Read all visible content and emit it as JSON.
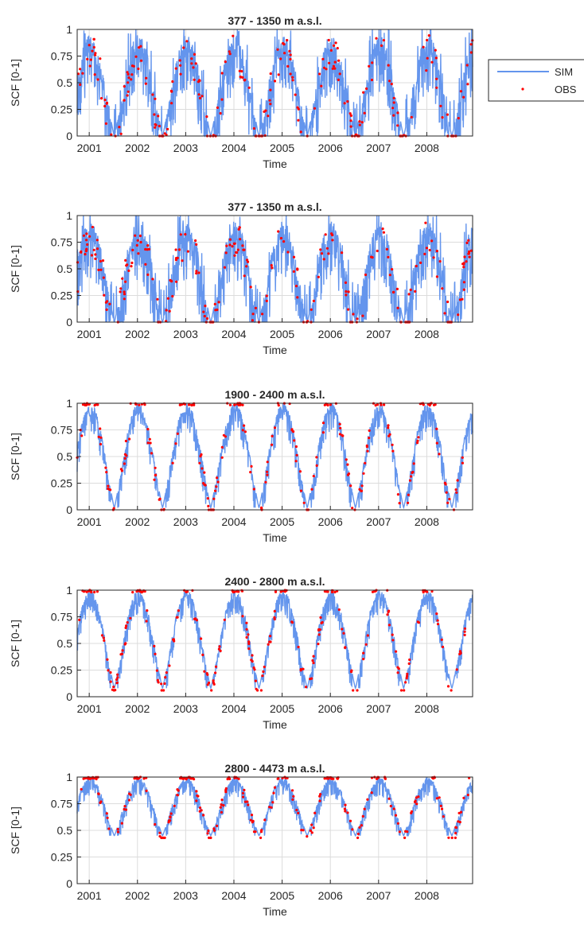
{
  "legend": {
    "sim_label": "SIM",
    "obs_label": "OBS",
    "sim_color": "#6495ED",
    "obs_color": "#FF0000"
  },
  "chart_data": [
    {
      "type": "line",
      "title": "377 - 1350 m a.s.l.",
      "xlabel": "Time",
      "ylabel": "SCF [0-1]",
      "xlim": [
        2000.75,
        2008.95
      ],
      "ylim": [
        0,
        1
      ],
      "x_tick_labels": [
        "2001",
        "2002",
        "2003",
        "2004",
        "2005",
        "2006",
        "2007",
        "2008"
      ],
      "y_tick_labels": [
        "0",
        "0.25",
        "0.5",
        "0.75",
        "1"
      ],
      "grid": true,
      "seasonal_profile": {
        "summer_min": 0.0,
        "winter_max": 0.95,
        "noise_amplitude": 0.55
      },
      "series": [
        {
          "name": "SIM",
          "style": "line",
          "color": "#6495ED"
        },
        {
          "name": "OBS",
          "style": "points",
          "color": "#FF0000"
        }
      ]
    },
    {
      "type": "line",
      "title": "377 - 1350 m a.s.l.",
      "xlabel": "Time",
      "ylabel": "SCF [0-1]",
      "xlim": [
        2000.75,
        2008.95
      ],
      "ylim": [
        0,
        1
      ],
      "x_tick_labels": [
        "2001",
        "2002",
        "2003",
        "2004",
        "2005",
        "2006",
        "2007",
        "2008"
      ],
      "y_tick_labels": [
        "0",
        "0.25",
        "0.5",
        "0.75",
        "1"
      ],
      "grid": true,
      "seasonal_profile": {
        "summer_min": 0.0,
        "winter_max": 0.95,
        "noise_amplitude": 0.55
      },
      "series": [
        {
          "name": "SIM",
          "style": "line",
          "color": "#6495ED"
        },
        {
          "name": "OBS",
          "style": "points",
          "color": "#FF0000"
        }
      ]
    },
    {
      "type": "line",
      "title": "1900 - 2400 m a.s.l.",
      "xlabel": "Time",
      "ylabel": "SCF [0-1]",
      "xlim": [
        2000.75,
        2008.95
      ],
      "ylim": [
        0,
        1
      ],
      "x_tick_labels": [
        "2001",
        "2002",
        "2003",
        "2004",
        "2005",
        "2006",
        "2007",
        "2008"
      ],
      "y_tick_labels": [
        "0",
        "0.25",
        "0.5",
        "0.75",
        "1"
      ],
      "grid": true,
      "seasonal_profile": {
        "summer_min": 0.02,
        "winter_max": 1.0,
        "noise_amplitude": 0.3
      },
      "series": [
        {
          "name": "SIM",
          "style": "line",
          "color": "#6495ED"
        },
        {
          "name": "OBS",
          "style": "points",
          "color": "#FF0000"
        }
      ]
    },
    {
      "type": "line",
      "title": "2400 - 2800 m a.s.l.",
      "xlabel": "Time",
      "ylabel": "SCF [0-1]",
      "xlim": [
        2000.75,
        2008.95
      ],
      "ylim": [
        0,
        1
      ],
      "x_tick_labels": [
        "2001",
        "2002",
        "2003",
        "2004",
        "2005",
        "2006",
        "2007",
        "2008"
      ],
      "y_tick_labels": [
        "0",
        "0.25",
        "0.5",
        "0.75",
        "1"
      ],
      "grid": true,
      "seasonal_profile": {
        "summer_min": 0.08,
        "winter_max": 1.0,
        "noise_amplitude": 0.25
      },
      "series": [
        {
          "name": "SIM",
          "style": "line",
          "color": "#6495ED"
        },
        {
          "name": "OBS",
          "style": "points",
          "color": "#FF0000"
        }
      ]
    },
    {
      "type": "line",
      "title": "2800 - 4473 m a.s.l.",
      "xlabel": "Time",
      "ylabel": "SCF [0-1]",
      "xlim": [
        2000.75,
        2008.95
      ],
      "ylim": [
        0,
        1
      ],
      "x_tick_labels": [
        "2001",
        "2002",
        "2003",
        "2004",
        "2005",
        "2006",
        "2007",
        "2008"
      ],
      "y_tick_labels": [
        "0",
        "0.25",
        "0.5",
        "0.75",
        "1"
      ],
      "grid": true,
      "seasonal_profile": {
        "summer_min": 0.45,
        "winter_max": 1.0,
        "noise_amplitude": 0.2
      },
      "series": [
        {
          "name": "SIM",
          "style": "line",
          "color": "#6495ED"
        },
        {
          "name": "OBS",
          "style": "points",
          "color": "#FF0000"
        }
      ]
    }
  ]
}
